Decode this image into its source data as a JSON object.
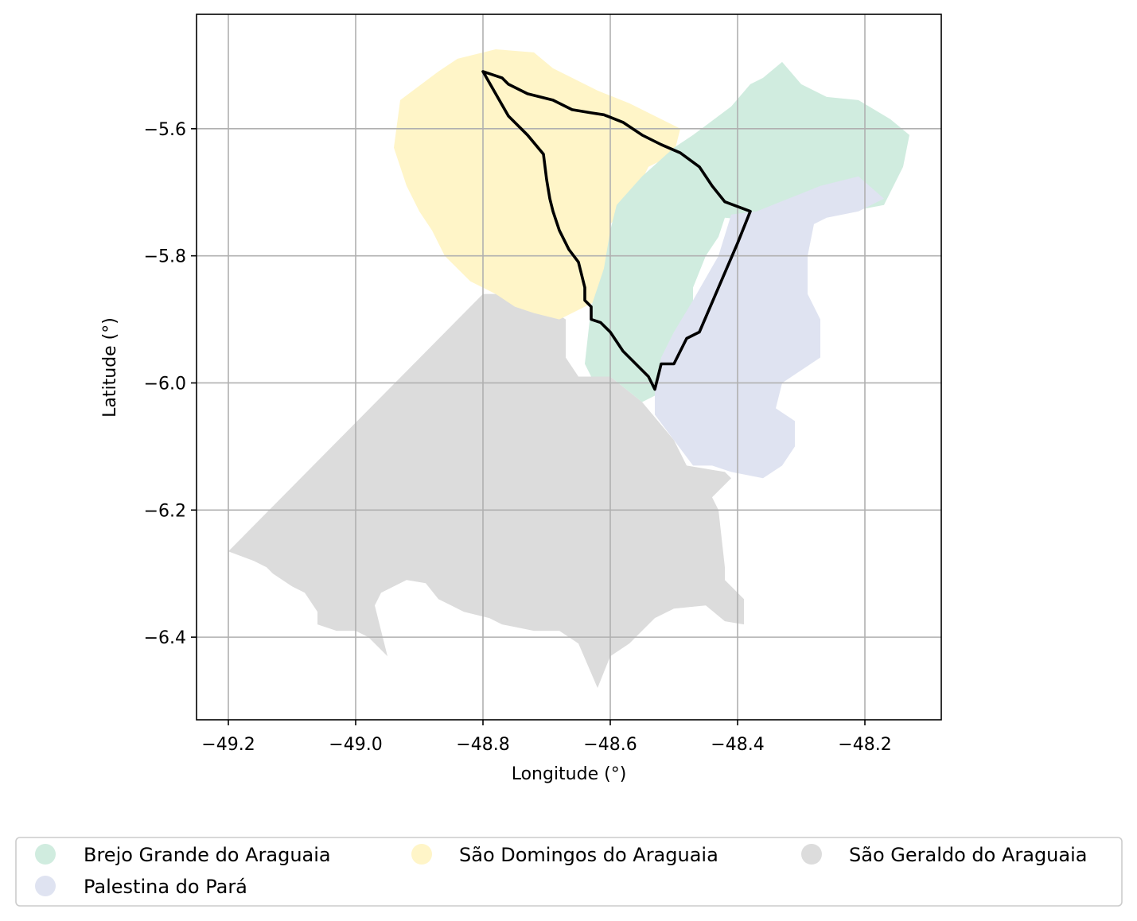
{
  "chart_data": {
    "type": "map",
    "xlabel": "Longitude (°)",
    "ylabel": "Latitude (°)",
    "xlim": [
      -49.25,
      -48.08
    ],
    "ylim": [
      -6.53,
      -5.42
    ],
    "grid": true,
    "x_ticks": [
      {
        "value": -49.2,
        "label": "−49.2"
      },
      {
        "value": -49.0,
        "label": "−49.0"
      },
      {
        "value": -48.8,
        "label": "−48.8"
      },
      {
        "value": -48.6,
        "label": "−48.6"
      },
      {
        "value": -48.4,
        "label": "−48.4"
      },
      {
        "value": -48.2,
        "label": "−48.2"
      }
    ],
    "y_ticks": [
      {
        "value": -5.6,
        "label": "−5.6"
      },
      {
        "value": -5.8,
        "label": "−5.8"
      },
      {
        "value": -6.0,
        "label": "−6.0"
      },
      {
        "value": -6.2,
        "label": "−6.2"
      },
      {
        "value": -6.4,
        "label": "−6.4"
      }
    ],
    "legend_placement": "bottom",
    "legend": [
      {
        "name": "Brejo Grande do Araguaia",
        "color": "#d0ecdf"
      },
      {
        "name": "São Domingos do Araguaia",
        "color": "#fff5c8"
      },
      {
        "name": "São Geraldo do Araguaia",
        "color": "#dcdcdc"
      },
      {
        "name": "Palestina do Pará",
        "color": "#dfe3f1"
      }
    ],
    "regions": [
      {
        "name": "São Geraldo do Araguaia",
        "color": "#dcdcdc",
        "coords": [
          [
            -49.2,
            -6.265
          ],
          [
            -49.16,
            -6.28
          ],
          [
            -49.14,
            -6.29
          ],
          [
            -49.13,
            -6.3
          ],
          [
            -49.1,
            -6.32
          ],
          [
            -49.08,
            -6.33
          ],
          [
            -49.06,
            -6.36
          ],
          [
            -49.06,
            -6.38
          ],
          [
            -49.03,
            -6.39
          ],
          [
            -49.0,
            -6.39
          ],
          [
            -48.98,
            -6.4
          ],
          [
            -48.95,
            -6.43
          ],
          [
            -48.96,
            -6.39
          ],
          [
            -48.97,
            -6.35
          ],
          [
            -48.96,
            -6.33
          ],
          [
            -48.92,
            -6.31
          ],
          [
            -48.89,
            -6.315
          ],
          [
            -48.87,
            -6.34
          ],
          [
            -48.83,
            -6.36
          ],
          [
            -48.79,
            -6.37
          ],
          [
            -48.77,
            -6.38
          ],
          [
            -48.72,
            -6.39
          ],
          [
            -48.68,
            -6.39
          ],
          [
            -48.65,
            -6.41
          ],
          [
            -48.62,
            -6.48
          ],
          [
            -48.6,
            -6.43
          ],
          [
            -48.57,
            -6.41
          ],
          [
            -48.55,
            -6.39
          ],
          [
            -48.53,
            -6.37
          ],
          [
            -48.5,
            -6.355
          ],
          [
            -48.45,
            -6.35
          ],
          [
            -48.42,
            -6.375
          ],
          [
            -48.39,
            -6.38
          ],
          [
            -48.39,
            -6.34
          ],
          [
            -48.42,
            -6.31
          ],
          [
            -48.42,
            -6.29
          ],
          [
            -48.43,
            -6.2
          ],
          [
            -48.44,
            -6.18
          ],
          [
            -48.41,
            -6.15
          ],
          [
            -48.42,
            -6.14
          ],
          [
            -48.48,
            -6.13
          ],
          [
            -48.5,
            -6.09
          ],
          [
            -48.55,
            -6.03
          ],
          [
            -48.6,
            -5.99
          ],
          [
            -48.65,
            -5.99
          ],
          [
            -48.67,
            -5.96
          ],
          [
            -48.67,
            -5.9
          ],
          [
            -48.7,
            -5.88
          ],
          [
            -48.74,
            -5.87
          ],
          [
            -48.78,
            -5.86
          ],
          [
            -48.8,
            -5.86
          ],
          [
            -49.2,
            -6.265
          ]
        ]
      },
      {
        "name": "São Domingos do Araguaia",
        "color": "#fff5c8",
        "coords": [
          [
            -48.93,
            -5.555
          ],
          [
            -48.87,
            -5.51
          ],
          [
            -48.84,
            -5.49
          ],
          [
            -48.78,
            -5.475
          ],
          [
            -48.72,
            -5.48
          ],
          [
            -48.69,
            -5.505
          ],
          [
            -48.62,
            -5.54
          ],
          [
            -48.57,
            -5.56
          ],
          [
            -48.49,
            -5.6
          ],
          [
            -48.5,
            -5.64
          ],
          [
            -48.54,
            -5.66
          ],
          [
            -48.57,
            -5.72
          ],
          [
            -48.6,
            -5.75
          ],
          [
            -48.6,
            -5.83
          ],
          [
            -48.62,
            -5.87
          ],
          [
            -48.68,
            -5.9
          ],
          [
            -48.72,
            -5.89
          ],
          [
            -48.75,
            -5.88
          ],
          [
            -48.78,
            -5.86
          ],
          [
            -48.82,
            -5.84
          ],
          [
            -48.86,
            -5.8
          ],
          [
            -48.88,
            -5.76
          ],
          [
            -48.9,
            -5.73
          ],
          [
            -48.92,
            -5.69
          ],
          [
            -48.94,
            -5.63
          ],
          [
            -48.93,
            -5.555
          ]
        ]
      },
      {
        "name": "Brejo Grande do Araguaia",
        "color": "#d0ecdf",
        "coords": [
          [
            -48.43,
            -5.58
          ],
          [
            -48.41,
            -5.565
          ],
          [
            -48.38,
            -5.53
          ],
          [
            -48.36,
            -5.52
          ],
          [
            -48.33,
            -5.495
          ],
          [
            -48.3,
            -5.53
          ],
          [
            -48.26,
            -5.55
          ],
          [
            -48.21,
            -5.555
          ],
          [
            -48.16,
            -5.585
          ],
          [
            -48.13,
            -5.61
          ],
          [
            -48.14,
            -5.66
          ],
          [
            -48.16,
            -5.7
          ],
          [
            -48.17,
            -5.72
          ],
          [
            -48.25,
            -5.735
          ],
          [
            -48.33,
            -5.73
          ],
          [
            -48.37,
            -5.745
          ],
          [
            -48.42,
            -5.74
          ],
          [
            -48.43,
            -5.77
          ],
          [
            -48.45,
            -5.8
          ],
          [
            -48.47,
            -5.85
          ],
          [
            -48.47,
            -5.93
          ],
          [
            -48.48,
            -5.98
          ],
          [
            -48.51,
            -6.0
          ],
          [
            -48.53,
            -6.02
          ],
          [
            -48.55,
            -6.03
          ],
          [
            -48.6,
            -5.99
          ],
          [
            -48.63,
            -5.99
          ],
          [
            -48.64,
            -5.97
          ],
          [
            -48.63,
            -5.88
          ],
          [
            -48.61,
            -5.82
          ],
          [
            -48.6,
            -5.76
          ],
          [
            -48.59,
            -5.72
          ],
          [
            -48.55,
            -5.675
          ],
          [
            -48.5,
            -5.63
          ],
          [
            -48.47,
            -5.61
          ],
          [
            -48.43,
            -5.58
          ]
        ]
      },
      {
        "name": "Palestina do Pará",
        "color": "#dfe3f1",
        "coords": [
          [
            -48.41,
            -5.735
          ],
          [
            -48.37,
            -5.73
          ],
          [
            -48.32,
            -5.71
          ],
          [
            -48.27,
            -5.69
          ],
          [
            -48.21,
            -5.675
          ],
          [
            -48.17,
            -5.71
          ],
          [
            -48.21,
            -5.73
          ],
          [
            -48.26,
            -5.74
          ],
          [
            -48.28,
            -5.75
          ],
          [
            -48.29,
            -5.8
          ],
          [
            -48.29,
            -5.86
          ],
          [
            -48.27,
            -5.9
          ],
          [
            -48.27,
            -5.96
          ],
          [
            -48.3,
            -5.98
          ],
          [
            -48.33,
            -6.0
          ],
          [
            -48.34,
            -6.04
          ],
          [
            -48.31,
            -6.06
          ],
          [
            -48.31,
            -6.1
          ],
          [
            -48.33,
            -6.13
          ],
          [
            -48.36,
            -6.15
          ],
          [
            -48.41,
            -6.14
          ],
          [
            -48.44,
            -6.13
          ],
          [
            -48.47,
            -6.13
          ],
          [
            -48.5,
            -6.09
          ],
          [
            -48.53,
            -6.05
          ],
          [
            -48.53,
            -6.01
          ],
          [
            -48.52,
            -5.96
          ],
          [
            -48.5,
            -5.92
          ],
          [
            -48.47,
            -5.87
          ],
          [
            -48.43,
            -5.8
          ],
          [
            -48.41,
            -5.735
          ]
        ]
      }
    ],
    "highlight_outline": {
      "color": "#000000",
      "coords": [
        [
          -48.8,
          -5.51
        ],
        [
          -48.77,
          -5.52
        ],
        [
          -48.76,
          -5.53
        ],
        [
          -48.73,
          -5.545
        ],
        [
          -48.69,
          -5.555
        ],
        [
          -48.66,
          -5.57
        ],
        [
          -48.63,
          -5.575
        ],
        [
          -48.61,
          -5.578
        ],
        [
          -48.58,
          -5.59
        ],
        [
          -48.55,
          -5.61
        ],
        [
          -48.52,
          -5.625
        ],
        [
          -48.49,
          -5.638
        ],
        [
          -48.46,
          -5.66
        ],
        [
          -48.44,
          -5.69
        ],
        [
          -48.42,
          -5.715
        ],
        [
          -48.38,
          -5.73
        ],
        [
          -48.4,
          -5.78
        ],
        [
          -48.43,
          -5.85
        ],
        [
          -48.46,
          -5.92
        ],
        [
          -48.48,
          -5.93
        ],
        [
          -48.49,
          -5.95
        ],
        [
          -48.5,
          -5.97
        ],
        [
          -48.52,
          -5.97
        ],
        [
          -48.525,
          -5.99
        ],
        [
          -48.53,
          -6.01
        ],
        [
          -48.54,
          -5.99
        ],
        [
          -48.55,
          -5.98
        ],
        [
          -48.58,
          -5.95
        ],
        [
          -48.6,
          -5.92
        ],
        [
          -48.615,
          -5.905
        ],
        [
          -48.63,
          -5.9
        ],
        [
          -48.63,
          -5.88
        ],
        [
          -48.64,
          -5.87
        ],
        [
          -48.64,
          -5.85
        ],
        [
          -48.645,
          -5.83
        ],
        [
          -48.65,
          -5.81
        ],
        [
          -48.665,
          -5.79
        ],
        [
          -48.68,
          -5.76
        ],
        [
          -48.69,
          -5.73
        ],
        [
          -48.695,
          -5.71
        ],
        [
          -48.7,
          -5.68
        ],
        [
          -48.705,
          -5.64
        ],
        [
          -48.73,
          -5.61
        ],
        [
          -48.76,
          -5.58
        ],
        [
          -48.8,
          -5.51
        ]
      ]
    }
  }
}
